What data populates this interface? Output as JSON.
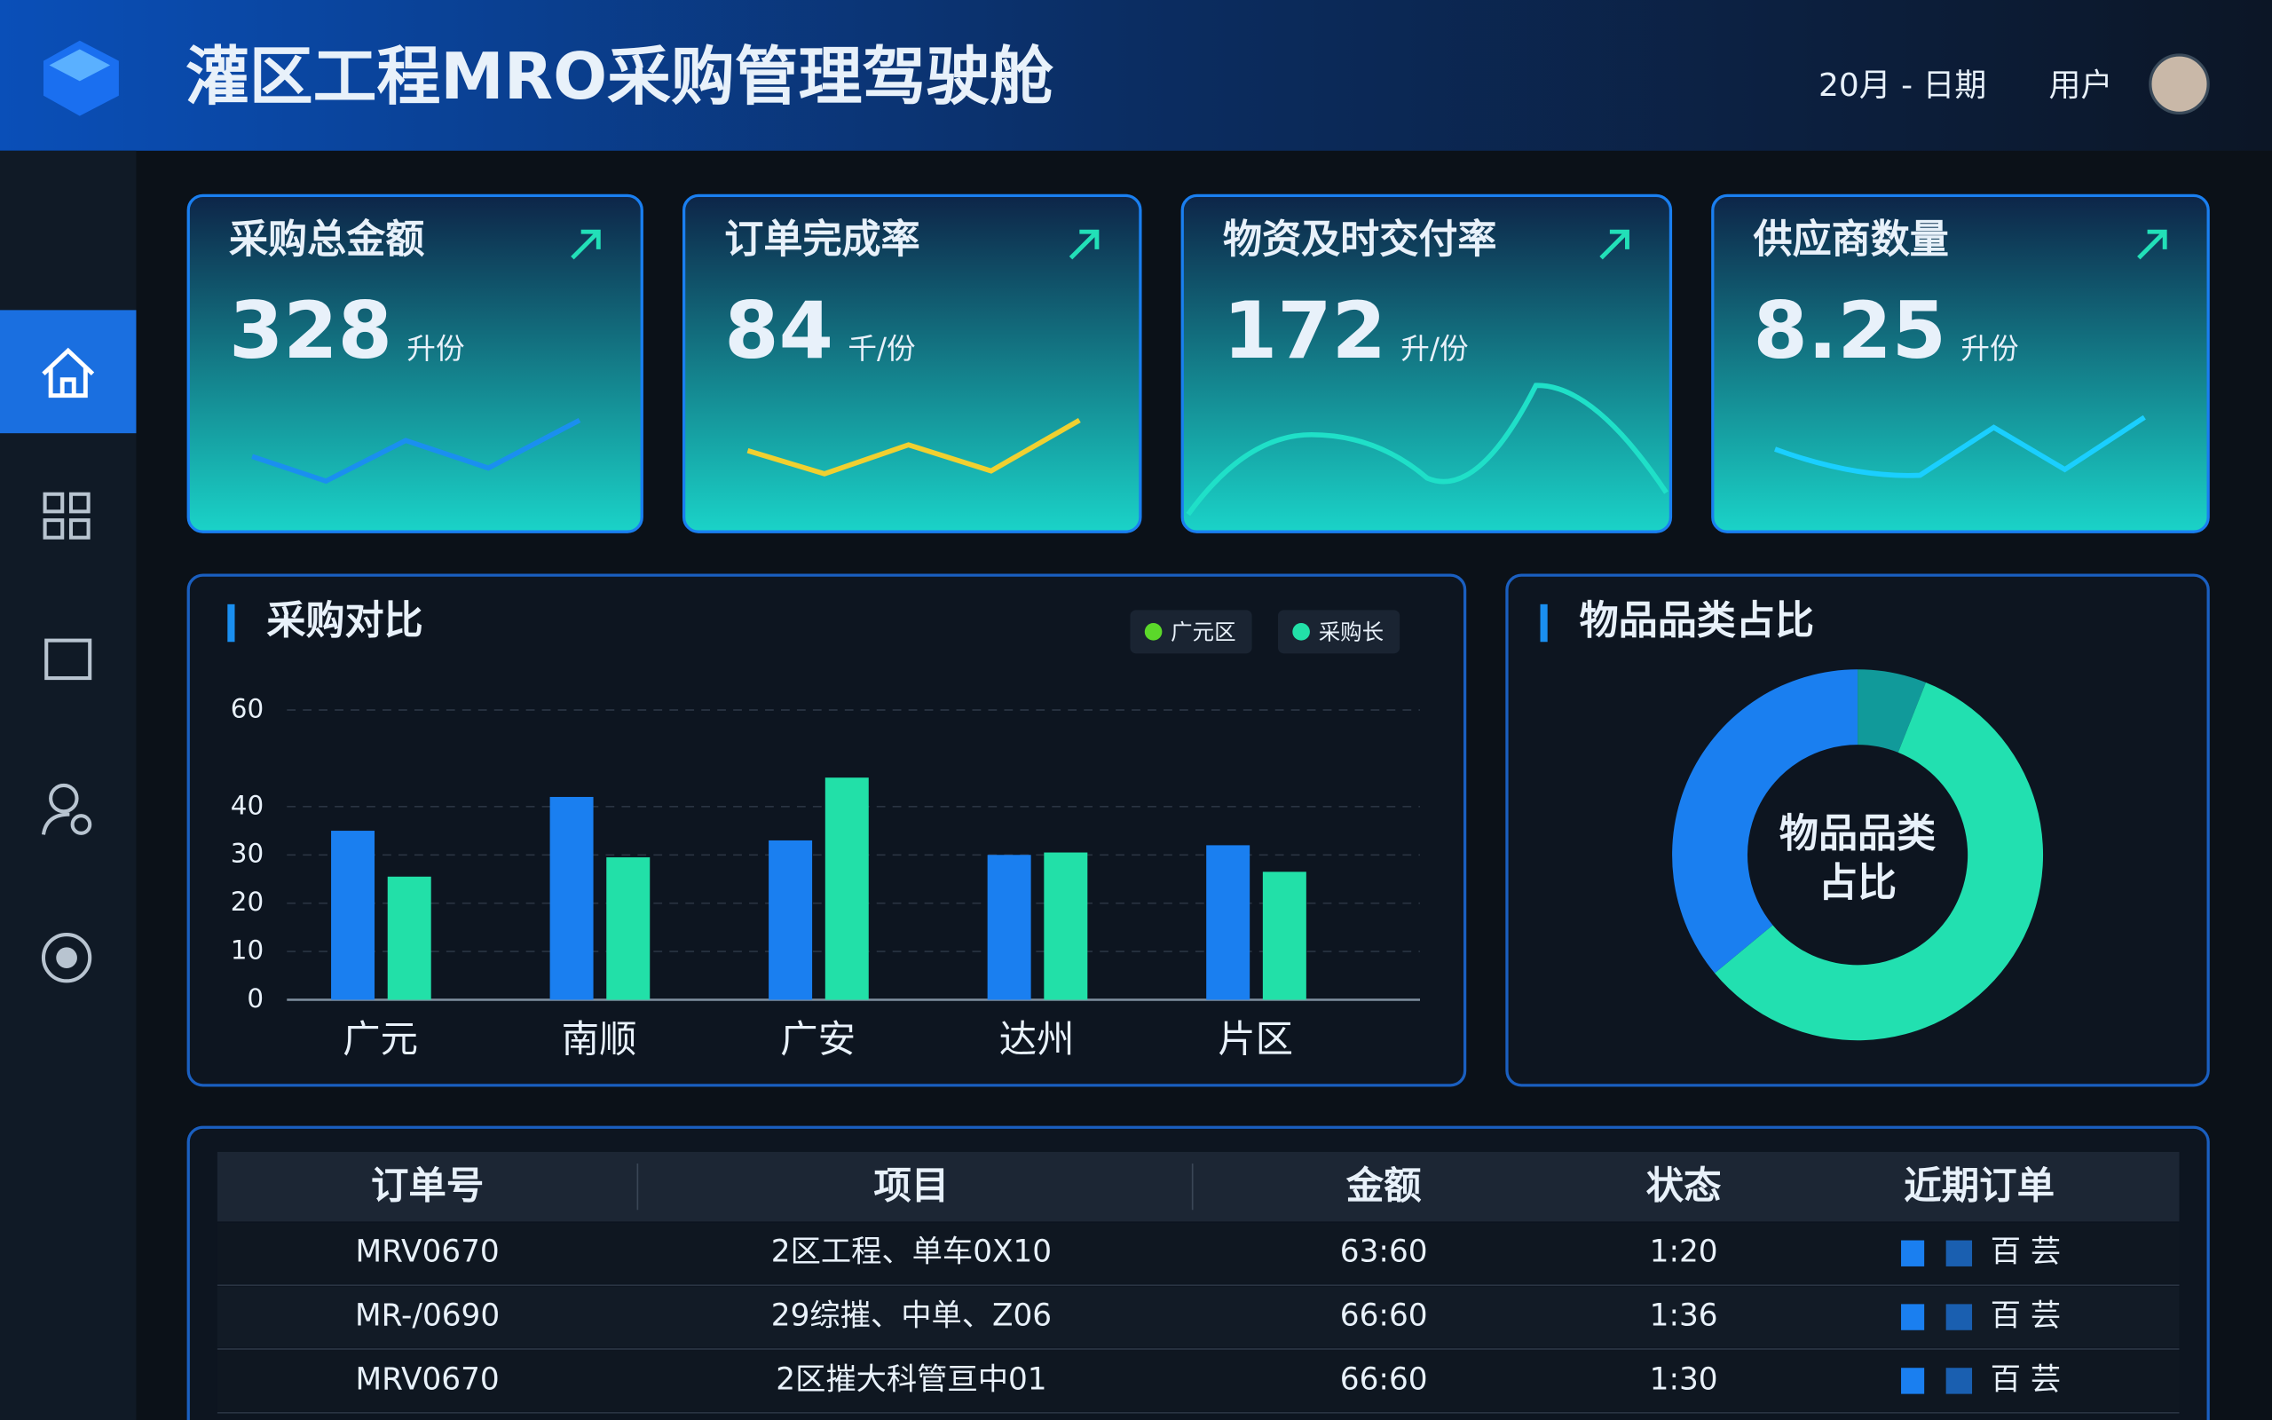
{
  "header": {
    "title": "灌区工程MRO采购管理驾驶舱",
    "date": "20月 - 日期",
    "user": "用户"
  },
  "kpis": [
    {
      "title": "采购总金额",
      "value": 328,
      "unit": "升份"
    },
    {
      "title": "订单完成率",
      "value": 84,
      "unit": "千/份"
    },
    {
      "title": "物资及时交付率",
      "value": 172,
      "unit": "升/份"
    },
    {
      "title": "供应商数量",
      "value": 8.25,
      "unit": "升份"
    }
  ],
  "chart_data": [
    {
      "type": "bar",
      "title": "采购对比",
      "categories": [
        "广元",
        "南顺",
        "广安",
        "达州",
        "片区"
      ],
      "series": [
        {
          "name": "广元区",
          "color": "#1a7ff0",
          "values": [
            35,
            42,
            33,
            30,
            32
          ]
        },
        {
          "name": "采购长",
          "color": "#22e0a8",
          "values": [
            25.5,
            29.5,
            46,
            30.5,
            26.5
          ]
        }
      ],
      "ylim": [
        0,
        60
      ],
      "yticks": [
        0,
        10,
        20,
        30,
        40,
        60
      ],
      "grid": true
    },
    {
      "type": "pie",
      "title": "物品品类占比",
      "center_label": [
        "物品品类",
        "占比"
      ],
      "values": [
        6,
        58,
        36
      ],
      "colors": [
        "#119a9a",
        "#22e0b0",
        "#1a7ff0"
      ]
    }
  ],
  "table": {
    "headers": [
      "订单号",
      "项目",
      "金额",
      "状态",
      "近期订单"
    ],
    "rows": [
      [
        "MRV0670",
        "2区工程、单车0X10",
        "63:60",
        "1:20",
        "百 芸"
      ],
      [
        "MR-/0690",
        "29综摧、中单、Z06",
        "66:60",
        "1:36",
        "百 芸"
      ],
      [
        "MRV0670",
        "2区摧大科管亘中01",
        "66:60",
        "1:30",
        "百 芸"
      ]
    ]
  }
}
